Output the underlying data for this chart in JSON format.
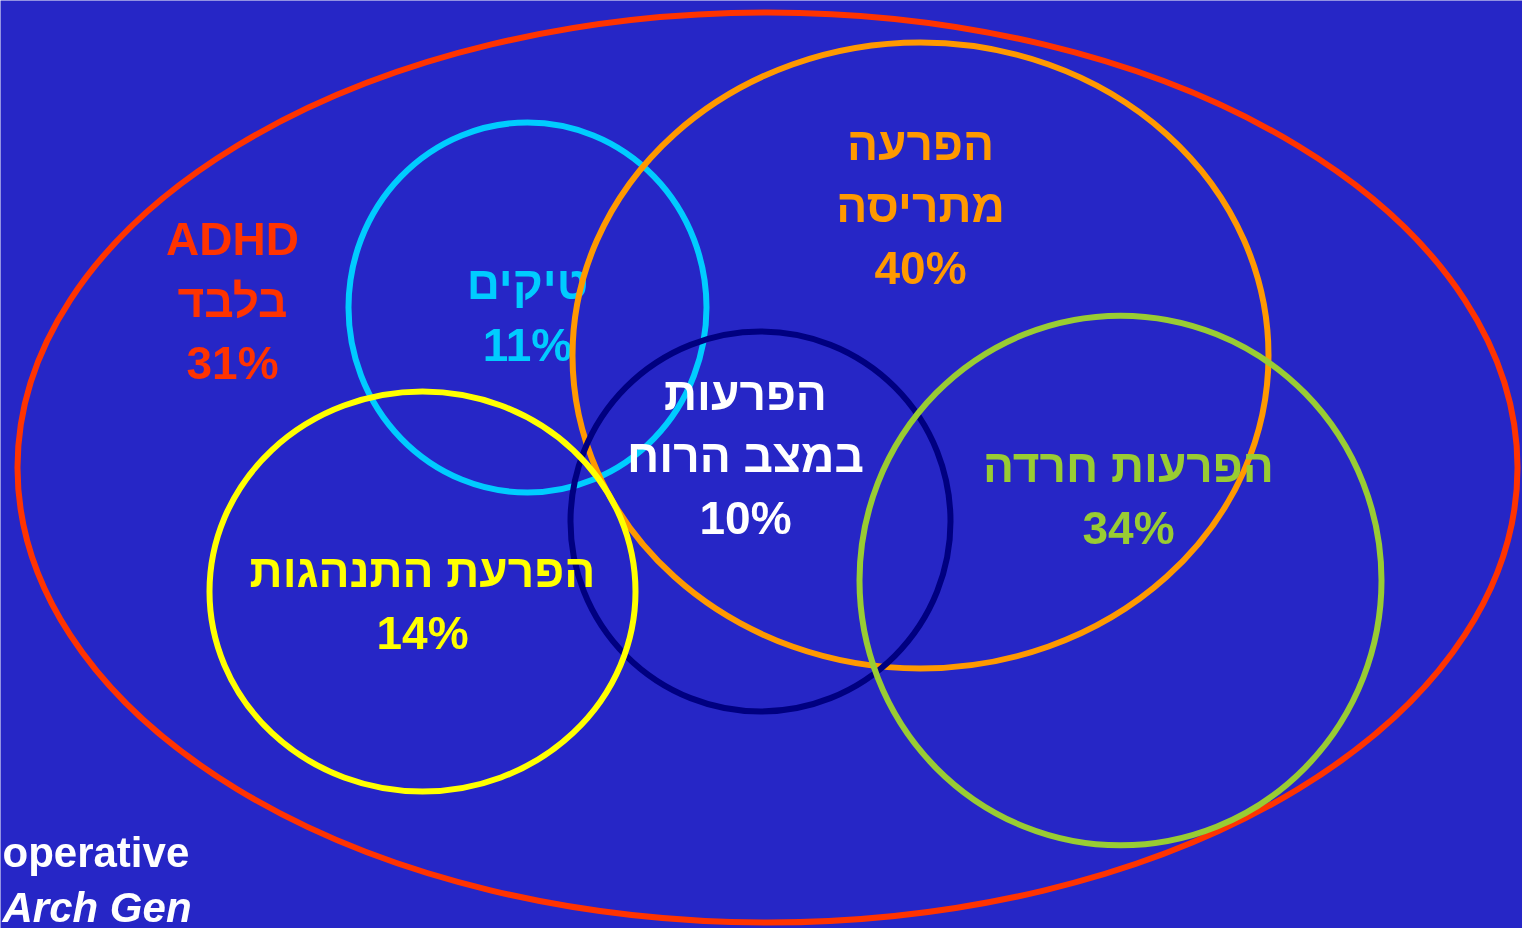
{
  "chart_data": {
    "type": "other",
    "categories": [
      "ADHD\nבלבד",
      "טיקים",
      "הפרעה\nמתריסה",
      "הפרעות\nבמצב הרוח",
      "הפרעות חרדה",
      "הפרעת התנהגות"
    ],
    "values": [
      31,
      11,
      40,
      10,
      34,
      14
    ],
    "value_labels": [
      "31%",
      "11%",
      "40%",
      "10%",
      "34%",
      "14%"
    ],
    "colors": [
      "#ff3300",
      "#00ccff",
      "#ff9900",
      "#000080",
      "#99cc33",
      "#ffff00"
    ],
    "annotations": [
      "operative",
      "Arch Gen"
    ]
  }
}
